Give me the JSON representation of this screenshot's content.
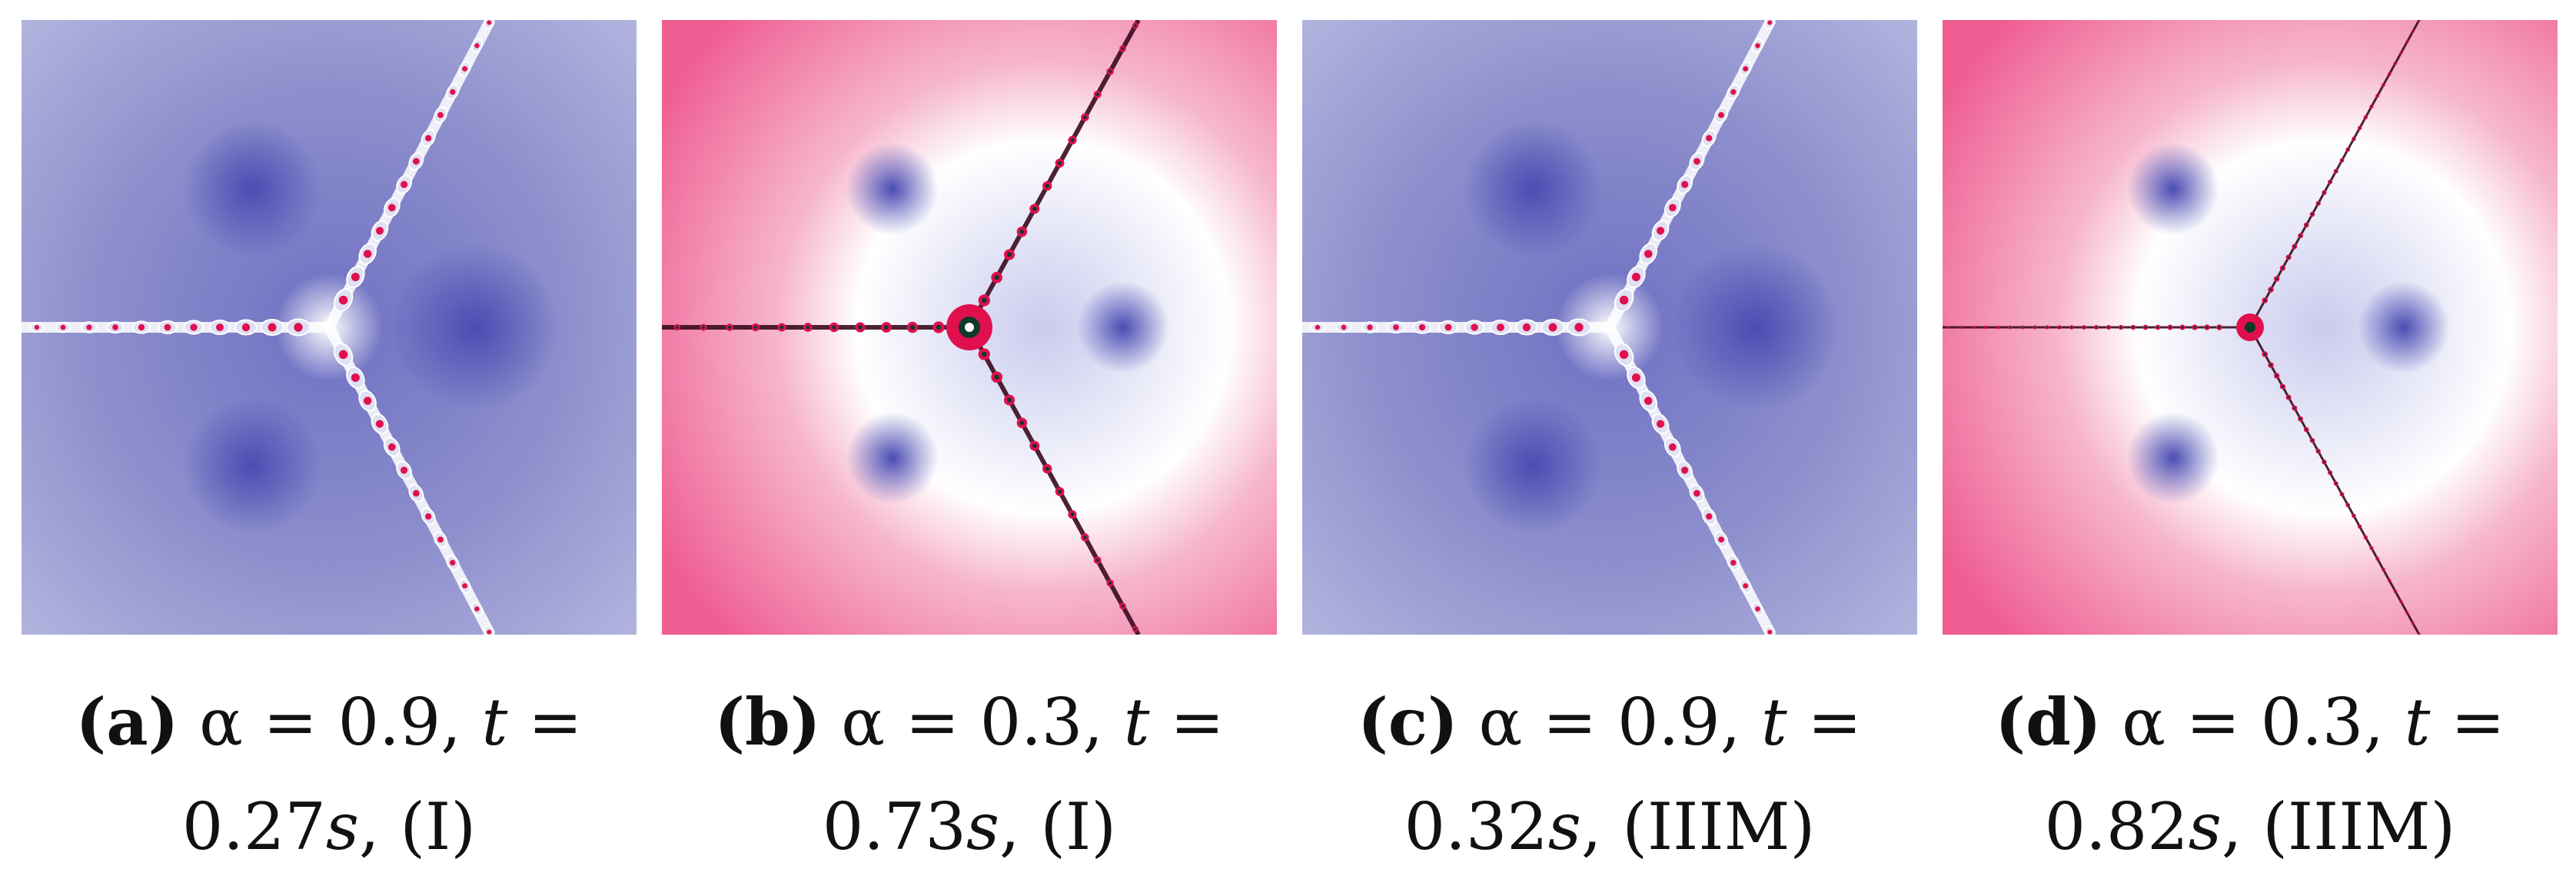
{
  "palette": {
    "blue_outer": "#a8aad8",
    "blue_mid": "#8d8fcc",
    "blue_core": "#4a4cb3",
    "pink_outer": "#ef5d92",
    "pink_mid": "#f6a2c0",
    "julia_red": "#e0104f",
    "white": "#ffffff"
  },
  "panels": [
    {
      "tag": "(a)",
      "line1_pre": "α = 0.9,",
      "line1_var": "t",
      "line1_eq": "=",
      "line2_val": "0.27",
      "line2_unit": "s",
      "line2_method": ", (I)",
      "scheme": "blue"
    },
    {
      "tag": "(b)",
      "line1_pre": "α = 0.3,",
      "line1_var": "t",
      "line1_eq": "=",
      "line2_val": "0.73",
      "line2_unit": "s",
      "line2_method": ", (I)",
      "scheme": "pink"
    },
    {
      "tag": "(c)",
      "line1_pre": "α = 0.9,",
      "line1_var": "t",
      "line1_eq": "=",
      "line2_val": "0.32",
      "line2_unit": "s",
      "line2_method": ", (IIIM)",
      "scheme": "blue"
    },
    {
      "tag": "(d)",
      "line1_pre": "α = 0.3,",
      "line1_var": "t",
      "line1_eq": "=",
      "line2_val": "0.82",
      "line2_unit": "s",
      "line2_method": ", (IIIM)",
      "scheme": "pink"
    }
  ]
}
